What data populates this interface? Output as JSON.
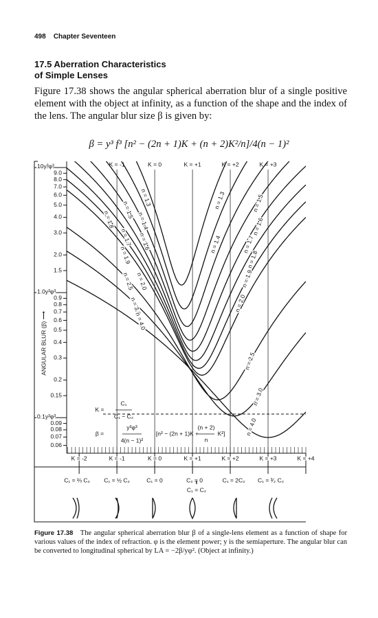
{
  "header": {
    "page": "498",
    "chapter": "Chapter Seventeen"
  },
  "section": {
    "title_line1": "17.5   Aberration Characteristics",
    "title_line2": "of Simple Lenses"
  },
  "body": "Figure 17.38 shows the angular spherical aberration blur of a single positive element with the object at infinity, as a function of the shape and the index of the lens. The angular blur size β is given by:",
  "formula": "β = y³ f³ [n² − (2n + 1)K + (n + 2)K²/n]/4(n − 1)²",
  "chart_data": {
    "type": "line",
    "ylog": true,
    "y_label": "ANGULAR BLUR (β) ⟶",
    "xlim": [
      -2.33,
      4
    ],
    "ylim": [
      0.052,
      11.2
    ],
    "xticks": [
      {
        "value": -2,
        "label": "K = -2"
      },
      {
        "value": -1,
        "label": "K = -1"
      },
      {
        "value": 0,
        "label": "K = 0"
      },
      {
        "value": 1,
        "label": "K = +1"
      },
      {
        "value": 2,
        "label": "K = +2"
      },
      {
        "value": 3,
        "label": "K = +3"
      },
      {
        "value": 4,
        "label": "K = +4"
      }
    ],
    "top_xticks": [
      {
        "value": -1,
        "label": "K = -1"
      },
      {
        "value": 0,
        "label": "K = 0"
      },
      {
        "value": 1,
        "label": "K = +1"
      },
      {
        "value": 2,
        "label": "K = +2"
      },
      {
        "value": 3,
        "label": "K = +3"
      }
    ],
    "yticks": [
      {
        "value": 10,
        "label": "10y³φ³"
      },
      {
        "value": 9,
        "label": "9.0"
      },
      {
        "value": 8,
        "label": "8.0"
      },
      {
        "value": 7,
        "label": "7.0"
      },
      {
        "value": 6,
        "label": "6.0"
      },
      {
        "value": 5,
        "label": "5.0"
      },
      {
        "value": 4,
        "label": "4.0"
      },
      {
        "value": 3,
        "label": "3.0"
      },
      {
        "value": 2,
        "label": "2.0"
      },
      1.5,
      {
        "value": 1,
        "label": "1.0y³φ³"
      },
      0.9,
      0.8,
      0.7,
      0.6,
      0.5,
      0.4,
      0.3,
      0.2,
      0.15,
      {
        "value": 0.1,
        "label": "0.1y³φ³"
      },
      0.09,
      0.08,
      0.07,
      0.06
    ],
    "n_values": [
      1.3,
      1.4,
      1.5,
      1.6,
      1.7,
      1.8,
      1.9,
      2.0,
      2.5,
      3.0,
      4.0
    ],
    "n_labels": [
      "n = 1.3",
      "n = 1.4",
      "n = 1.5",
      "n = 1.6",
      "n = 1.7",
      "n = 1.8",
      "n = 1.9",
      "n = 2.0",
      "n = 2.5",
      "n = 3.0",
      "n = 4.0"
    ],
    "inset": {
      "k_eq": "K =",
      "k_num": "C₁",
      "k_den": "C₁ − C₂",
      "b_eq": "β =",
      "b_num": "y³φ³",
      "b_den": "4(n − 1)²",
      "b_br": "[n² − (2n + 1)K +",
      "b_num2": "(n + 2)",
      "b_den2": "n",
      "b_end": "K²]"
    },
    "shapes": [
      "C₁ = ⅔ C₂",
      "C₁ = ½ C₂",
      "C₁ = 0",
      "C₂ = 0",
      "C₁ = 2C₂",
      "C₁ = ³⁄₂ C₂"
    ],
    "shape_mid": "C₁ = C₂"
  },
  "caption": {
    "label": "Figure 17.38",
    "text": "The angular spherical aberration blur β of a single-lens element as a function of shape for various values of the index of refraction. φ is the element power; y is the semiaperture. The angular blur can be converted to longitudinal spherical by LA = −2β/yφ². (Object at infinity.)"
  }
}
